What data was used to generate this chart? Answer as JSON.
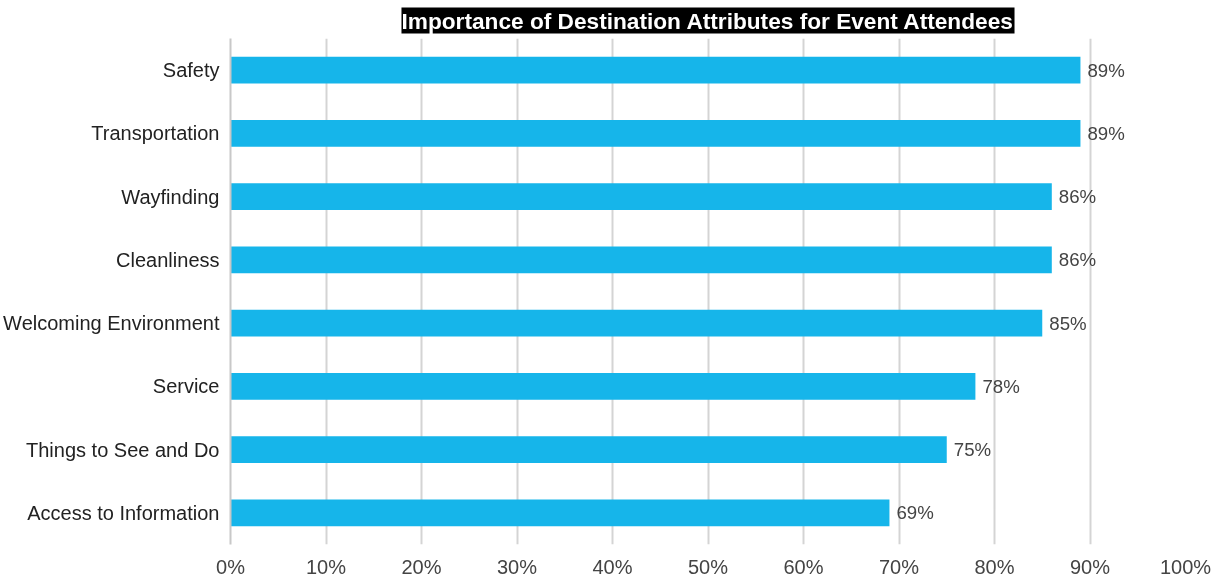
{
  "chart_data": {
    "type": "bar",
    "orientation": "horizontal",
    "title": "Importance of Destination Attributes for Event Attendees",
    "categories": [
      "Safety",
      "Transportation",
      "Wayfinding",
      "Cleanliness",
      "Welcoming Environment",
      "Service",
      "Things to See and Do",
      "Access to Information"
    ],
    "values": [
      89,
      89,
      86,
      86,
      85,
      78,
      75,
      69
    ],
    "color": "#16b5ea",
    "value_labels": [
      "89%",
      "89%",
      "86%",
      "86%",
      "85%",
      "78%",
      "75%",
      "69%"
    ],
    "xlim": [
      0,
      100
    ],
    "xticks": [
      {
        "value": 0,
        "label": "0%"
      },
      {
        "value": 10,
        "label": "10%"
      },
      {
        "value": 20,
        "label": "20%"
      },
      {
        "value": 30,
        "label": "30%"
      },
      {
        "value": 40,
        "label": "40%"
      },
      {
        "value": 50,
        "label": "50%"
      },
      {
        "value": 60,
        "label": "60%"
      },
      {
        "value": 70,
        "label": "70%"
      },
      {
        "value": 80,
        "label": "80%"
      },
      {
        "value": 90,
        "label": "90%"
      },
      {
        "value": 100,
        "label": "100%"
      }
    ],
    "grid": "x"
  }
}
